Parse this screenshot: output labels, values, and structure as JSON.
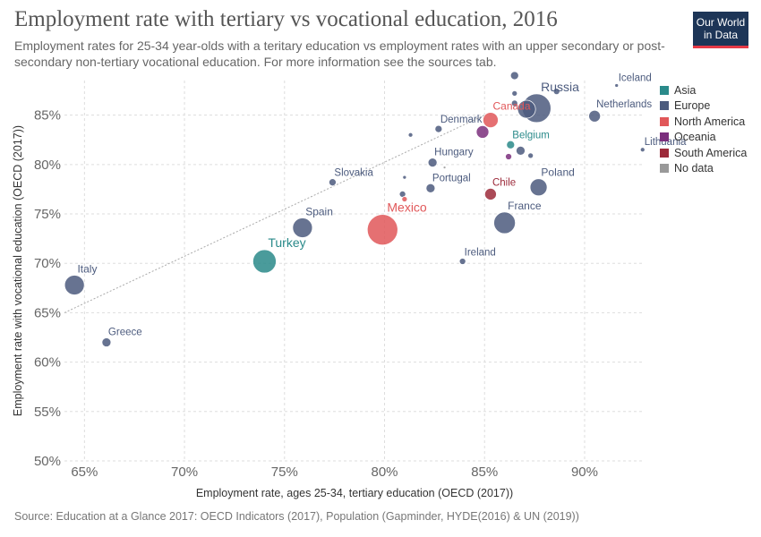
{
  "header": {
    "title": "Employment rate with tertiary vs vocational education, 2016",
    "subtitle": "Employment rates for 25-34 year-olds with a teritary education vs employment rates with an upper secondary or post-secondary non-tertiary vocational education. For more information see the sources tab."
  },
  "logo": {
    "line1": "Our World",
    "line2": "in Data"
  },
  "source": "Source: Education at a Glance 2017: OECD Indicators (2017), Population (Gapminder, HYDE(2016) & UN (2019))",
  "colors": {
    "Asia": "#2a8a8a",
    "Europe": "#4c5b7e",
    "North America": "#e15759",
    "Oceania": "#7b2f7d",
    "South America": "#9c2a3a",
    "No data": "#999999"
  },
  "chart_data": {
    "type": "scatter",
    "title": "Employment rate with tertiary vs vocational education, 2016",
    "xlabel": "Employment rate, ages 25-34, tertiary education (OECD (2017))",
    "ylabel": "Employment rate with vocational education (OECD (2017))",
    "xlim": [
      64,
      93
    ],
    "ylim": [
      50,
      88.5
    ],
    "x_ticks": [
      65,
      70,
      75,
      80,
      85,
      90
    ],
    "x_tick_labels": [
      "65%",
      "70%",
      "75%",
      "80%",
      "85%",
      "90%"
    ],
    "y_ticks": [
      50,
      55,
      60,
      65,
      70,
      75,
      80,
      85
    ],
    "y_tick_labels": [
      "50%",
      "55%",
      "60%",
      "65%",
      "70%",
      "75%",
      "80%",
      "85%"
    ],
    "grid": true,
    "legend_position": "right",
    "legend": [
      "Asia",
      "Europe",
      "North America",
      "Oceania",
      "South America",
      "No data"
    ],
    "reference_line": {
      "from": [
        64,
        65
      ],
      "to": [
        85,
        85
      ]
    },
    "points": [
      {
        "label": "Italy",
        "x": 64.5,
        "y": 67.8,
        "r": 11,
        "region": "Europe"
      },
      {
        "label": "Greece",
        "x": 66.1,
        "y": 62.0,
        "r": 5,
        "region": "Europe"
      },
      {
        "label": "Turkey",
        "x": 74.0,
        "y": 70.2,
        "r": 13,
        "region": "Asia"
      },
      {
        "label": "Spain",
        "x": 75.9,
        "y": 73.6,
        "r": 11,
        "region": "Europe"
      },
      {
        "label": "Slovakia",
        "x": 77.4,
        "y": 78.2,
        "r": 4,
        "region": "Europe"
      },
      {
        "label": "Mexico",
        "x": 79.9,
        "y": 73.4,
        "r": 17,
        "region": "North America"
      },
      {
        "label": "",
        "x": 81.0,
        "y": 76.5,
        "r": 3,
        "region": "North America"
      },
      {
        "label": "",
        "x": 80.9,
        "y": 77.0,
        "r": 3.5,
        "region": "Europe"
      },
      {
        "label": "",
        "x": 81.0,
        "y": 78.7,
        "r": 2,
        "region": "Europe"
      },
      {
        "label": "",
        "x": 81.3,
        "y": 83.0,
        "r": 2.5,
        "region": "Europe"
      },
      {
        "label": "Portugal",
        "x": 82.3,
        "y": 77.6,
        "r": 5,
        "region": "Europe"
      },
      {
        "label": "Hungary",
        "x": 82.4,
        "y": 80.2,
        "r": 5,
        "region": "Europe"
      },
      {
        "label": "Denmark",
        "x": 82.7,
        "y": 83.6,
        "r": 4,
        "region": "Europe"
      },
      {
        "label": "",
        "x": 83.0,
        "y": 79.7,
        "r": 1.5,
        "region": "No data"
      },
      {
        "label": "Ireland",
        "x": 83.9,
        "y": 70.2,
        "r": 3.5,
        "region": "Europe"
      },
      {
        "label": "",
        "x": 84.9,
        "y": 83.3,
        "r": 7,
        "region": "Oceania"
      },
      {
        "label": "Canada",
        "x": 85.3,
        "y": 84.5,
        "r": 8.5,
        "region": "North America"
      },
      {
        "label": "Chile",
        "x": 85.3,
        "y": 77.0,
        "r": 6.5,
        "region": "South America"
      },
      {
        "label": "France",
        "x": 86.0,
        "y": 74.1,
        "r": 12,
        "region": "Europe"
      },
      {
        "label": "",
        "x": 86.2,
        "y": 80.8,
        "r": 3.5,
        "region": "Oceania"
      },
      {
        "label": "Belgium",
        "x": 86.3,
        "y": 82.0,
        "r": 4.5,
        "region": "Asia"
      },
      {
        "label": "",
        "x": 86.5,
        "y": 89.0,
        "r": 4.5,
        "region": "Europe"
      },
      {
        "label": "",
        "x": 86.5,
        "y": 87.2,
        "r": 3,
        "region": "Europe"
      },
      {
        "label": "",
        "x": 86.5,
        "y": 86.2,
        "r": 3.5,
        "region": "Europe"
      },
      {
        "label": "",
        "x": 86.8,
        "y": 81.4,
        "r": 5,
        "region": "Europe"
      },
      {
        "label": "",
        "x": 87.1,
        "y": 85.6,
        "r": 10,
        "region": "Europe"
      },
      {
        "label": "",
        "x": 87.3,
        "y": 80.9,
        "r": 3,
        "region": "Europe"
      },
      {
        "label": "Russia",
        "x": 87.6,
        "y": 85.7,
        "r": 16,
        "region": "Europe"
      },
      {
        "label": "Poland",
        "x": 87.7,
        "y": 77.7,
        "r": 9.5,
        "region": "Europe"
      },
      {
        "label": "",
        "x": 88.6,
        "y": 87.4,
        "r": 3.5,
        "region": "Europe"
      },
      {
        "label": "Netherlands",
        "x": 90.5,
        "y": 84.9,
        "r": 6.5,
        "region": "Europe"
      },
      {
        "label": "Iceland",
        "x": 91.6,
        "y": 88.0,
        "r": 2,
        "region": "Europe"
      },
      {
        "label": "Lithuania",
        "x": 92.9,
        "y": 81.5,
        "r": 2.5,
        "region": "Europe"
      }
    ]
  }
}
